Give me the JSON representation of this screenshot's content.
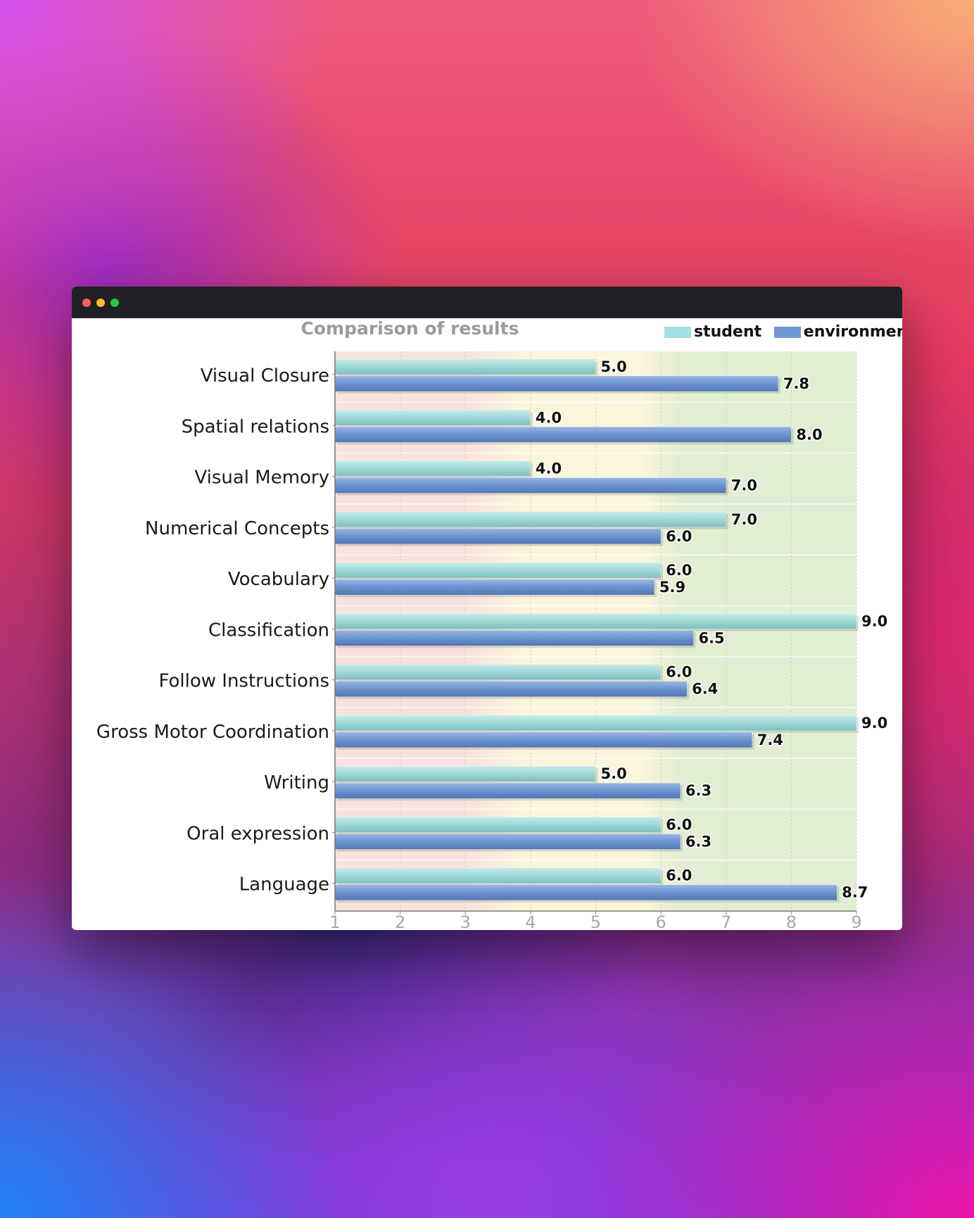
{
  "window": {
    "controls": [
      "close",
      "minimize",
      "maximize"
    ]
  },
  "chart_data": {
    "type": "bar",
    "orientation": "horizontal",
    "title": "Comparison of results",
    "categories": [
      "Visual Closure",
      "Spatial relations",
      "Visual Memory",
      "Numerical Concepts",
      "Vocabulary",
      "Classification",
      "Follow Instructions",
      "Gross Motor Coordination",
      "Writing",
      "Oral expression",
      "Language"
    ],
    "series": [
      {
        "name": "student",
        "color": "#a2dddf",
        "values": [
          5.0,
          4.0,
          4.0,
          7.0,
          6.0,
          9.0,
          6.0,
          9.0,
          5.0,
          6.0,
          6.0
        ]
      },
      {
        "name": "environment",
        "color": "#6f97d3",
        "values": [
          7.8,
          8.0,
          7.0,
          6.0,
          5.9,
          6.5,
          6.4,
          7.4,
          6.3,
          6.3,
          8.7
        ]
      }
    ],
    "data_labels": {
      "student": [
        "5.0",
        "4.0",
        "4.0",
        "7.0",
        "6.0",
        "9.0",
        "6.0",
        "9.0",
        "5.0",
        "6.0",
        "6.0"
      ],
      "environment": [
        "7.8",
        "8.0",
        "7.0",
        "6.0",
        "5.9",
        "6.5",
        "6.4",
        "7.4",
        "6.3",
        "6.3",
        "8.7"
      ]
    },
    "xticks": [
      "1",
      "2",
      "3",
      "4",
      "5",
      "6",
      "7",
      "8",
      "9"
    ],
    "xlim": [
      1,
      9
    ],
    "grid": true,
    "legend_position": "top-right",
    "background_bands": [
      {
        "from": 1,
        "to": 3.5,
        "color": "#f8e2dd"
      },
      {
        "from": 3.5,
        "to": 6,
        "color": "#fbf5dc"
      },
      {
        "from": 6,
        "to": 9,
        "color": "#e2eed3"
      }
    ]
  }
}
